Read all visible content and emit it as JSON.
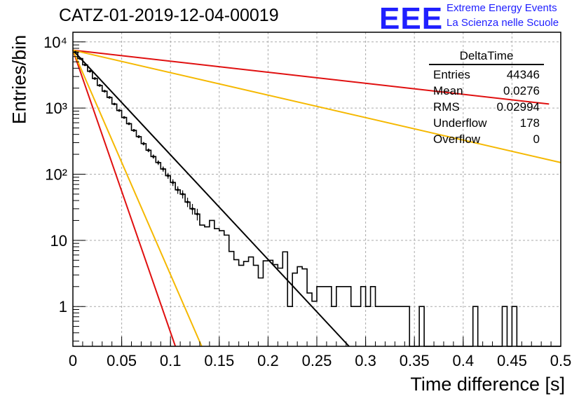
{
  "header": {
    "title": "CATZ-01-2019-12-04-00019",
    "logo_text": "EEE",
    "logo_line1": "Extreme Energy Events",
    "logo_line2": "La Scienza nelle Scuole"
  },
  "stats_box": {
    "title": "DeltaTime",
    "rows": [
      {
        "label": "Entries",
        "value": "44346"
      },
      {
        "label": "Mean",
        "value": "0.0276"
      },
      {
        "label": "RMS",
        "value": "0.02994"
      },
      {
        "label": "Underflow",
        "value": "178"
      },
      {
        "label": "Overflow",
        "value": "0"
      }
    ]
  },
  "chart_data": {
    "type": "line",
    "title": "CATZ-01-2019-12-04-00019",
    "xlabel": "Time difference [s]",
    "ylabel": "Entries/bin",
    "xlim": [
      0,
      0.5
    ],
    "ylim": [
      0.25,
      14000
    ],
    "yscale": "log",
    "grid": true,
    "x_ticks": [
      "0",
      "0.05",
      "0.1",
      "0.15",
      "0.2",
      "0.25",
      "0.3",
      "0.35",
      "0.4",
      "0.45",
      "0.5"
    ],
    "y_ticks": [
      "1",
      "10",
      "10²",
      "10³",
      "10⁴"
    ],
    "histogram": {
      "bin_width": 0.005,
      "values": [
        7000,
        5600,
        4500,
        3600,
        2800,
        2200,
        1800,
        1450,
        1150,
        920,
        720,
        580,
        460,
        370,
        290,
        230,
        185,
        150,
        120,
        95,
        75,
        58,
        50,
        38,
        30,
        25,
        17,
        16,
        20,
        15,
        14,
        12,
        6.8,
        5.1,
        4.2,
        4.8,
        5.6,
        4.2,
        2.7,
        4.9,
        5.0,
        4.3,
        3.8,
        6.7,
        1.0,
        3.2,
        4.0,
        3.7,
        1.6,
        1.2,
        2.0,
        2.0,
        2.0,
        1.0,
        2.0,
        2.0,
        2.0,
        1.0,
        1.0,
        2.0,
        1.0,
        2.0,
        1.0,
        1.0,
        1.0,
        1.0,
        1.0,
        1.0,
        1.0,
        0.1,
        0.1,
        1.0,
        0.1,
        0.1,
        0.1,
        0.1,
        0.1,
        0.1,
        0.1,
        0.1,
        0.1,
        0.1,
        1.0,
        0.1,
        0.1,
        0.1,
        0.1,
        0.1,
        1.0,
        0.1,
        1.0,
        0.1,
        0.1,
        0.1,
        0.1,
        0.1,
        0.1,
        0.1,
        0.1,
        0.1
      ]
    },
    "fit_lines": [
      {
        "color": "#000000",
        "x": [
          0,
          0.283
        ],
        "y": [
          7500,
          0.25
        ]
      },
      {
        "color": "#e01010",
        "x": [
          0,
          0.488
        ],
        "y": [
          7500,
          1150
        ]
      },
      {
        "color": "#f5b800",
        "x": [
          0,
          0.5
        ],
        "y": [
          7500,
          150
        ]
      },
      {
        "color": "#e01010",
        "x": [
          0,
          0.105
        ],
        "y": [
          7500,
          0.25
        ]
      },
      {
        "color": "#f5b800",
        "x": [
          0,
          0.132
        ],
        "y": [
          7500,
          0.25
        ]
      }
    ]
  }
}
